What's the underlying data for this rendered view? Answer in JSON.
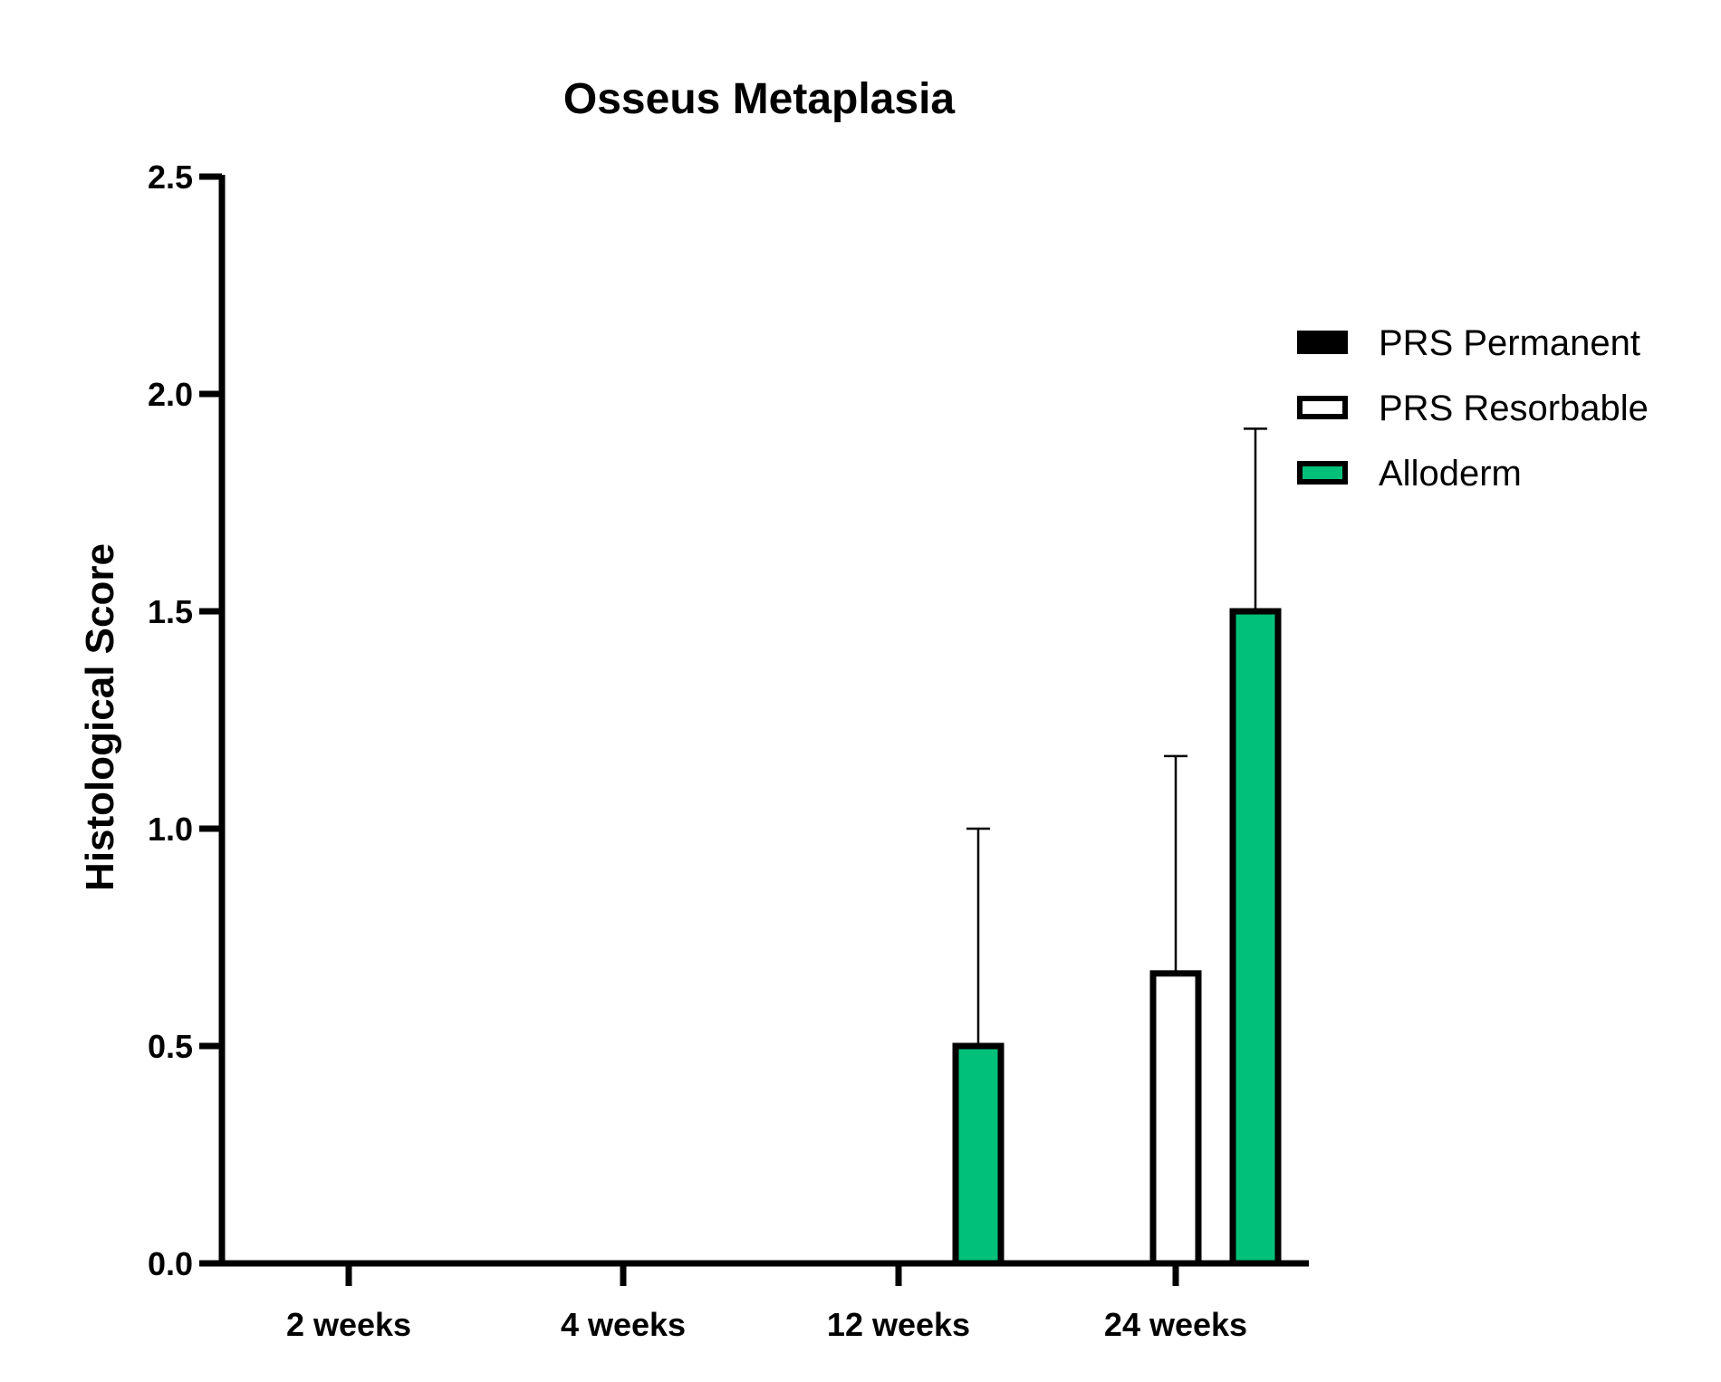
{
  "chart_data": {
    "type": "bar",
    "title": "Osseus Metaplasia",
    "xlabel": "",
    "ylabel": "Histological Score",
    "ylim": [
      0,
      2.5
    ],
    "yticks": [
      "0.0",
      "0.5",
      "1.0",
      "1.5",
      "2.0",
      "2.5"
    ],
    "categories": [
      "2 weeks",
      "4 weeks",
      "12 weeks",
      "24 weeks"
    ],
    "series": [
      {
        "name": "PRS Permanent",
        "color": "#000000",
        "values": [
          0,
          0,
          0,
          0
        ],
        "error": [
          0,
          0,
          0,
          0
        ]
      },
      {
        "name": "PRS Resorbable",
        "color": "#ffffff",
        "values": [
          0,
          0,
          0,
          0.667
        ],
        "error": [
          0,
          0,
          0,
          0.5
        ]
      },
      {
        "name": "Alloderm",
        "color": "#00c07a",
        "values": [
          0,
          0,
          0.5,
          1.5
        ],
        "error": [
          0,
          0,
          0.5,
          0.42
        ]
      }
    ],
    "legend_position": "right",
    "grid": false
  }
}
